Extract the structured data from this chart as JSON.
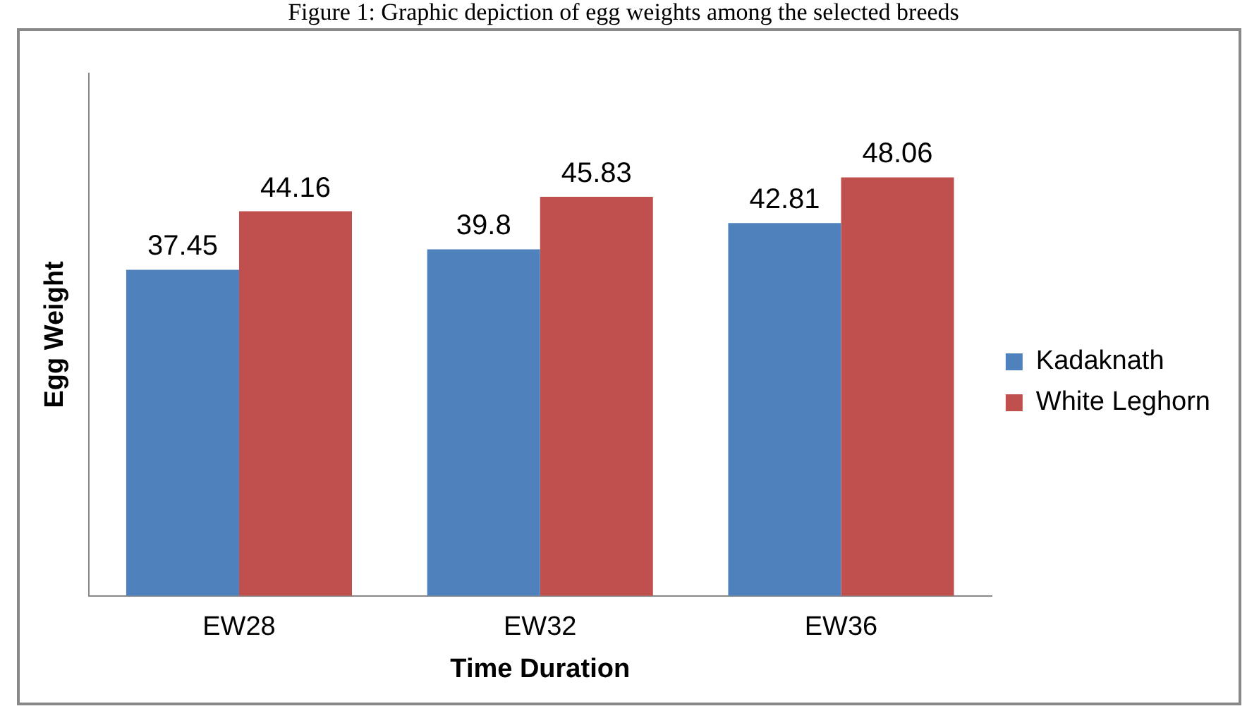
{
  "chart_data": {
    "type": "bar",
    "title": "Figure 1: Graphic depiction of egg weights among the selected breeds",
    "xlabel": "Time Duration",
    "ylabel": "Egg Weight",
    "categories": [
      "EW28",
      "EW32",
      "EW36"
    ],
    "series": [
      {
        "name": "Kadaknath",
        "color": "#4f81bd",
        "values": [
          37.45,
          39.8,
          42.81
        ]
      },
      {
        "name": "White Leghorn",
        "color": "#c0504d",
        "values": [
          44.16,
          45.83,
          48.06
        ]
      }
    ],
    "relative": false,
    "data_labels": true,
    "legend": "right",
    "grid": false
  }
}
